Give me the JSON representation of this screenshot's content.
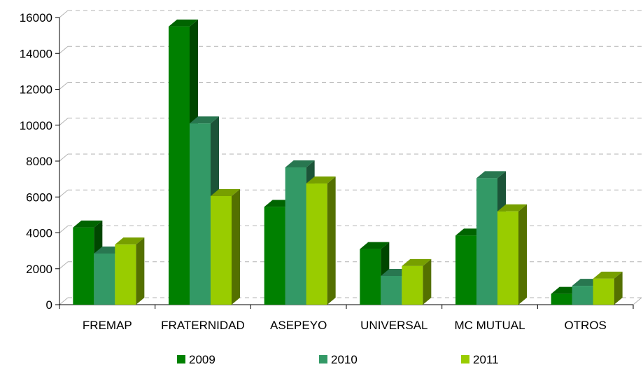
{
  "chart_data": {
    "type": "bar",
    "subtype": "3d-clustered-column",
    "categories": [
      "FREMAP",
      "FRATERNIDAD",
      "ASEPEYO",
      "UNIVERSAL",
      "MC MUTUAL",
      "OTROS"
    ],
    "series": [
      {
        "name": "2009",
        "values": [
          4300,
          15500,
          5450,
          3100,
          3850,
          600
        ],
        "color": "#008000"
      },
      {
        "name": "2010",
        "values": [
          2850,
          10100,
          7650,
          1600,
          7050,
          1050
        ],
        "color": "#339966"
      },
      {
        "name": "2011",
        "values": [
          3350,
          6050,
          6750,
          2150,
          5200,
          1450
        ],
        "color": "#99cc00"
      }
    ],
    "title": "",
    "xlabel": "",
    "ylabel": "",
    "ylim": [
      0,
      16000
    ],
    "yticks": [
      0,
      2000,
      4000,
      6000,
      8000,
      10000,
      12000,
      14000,
      16000
    ],
    "grid": true,
    "legend_position": "bottom"
  }
}
